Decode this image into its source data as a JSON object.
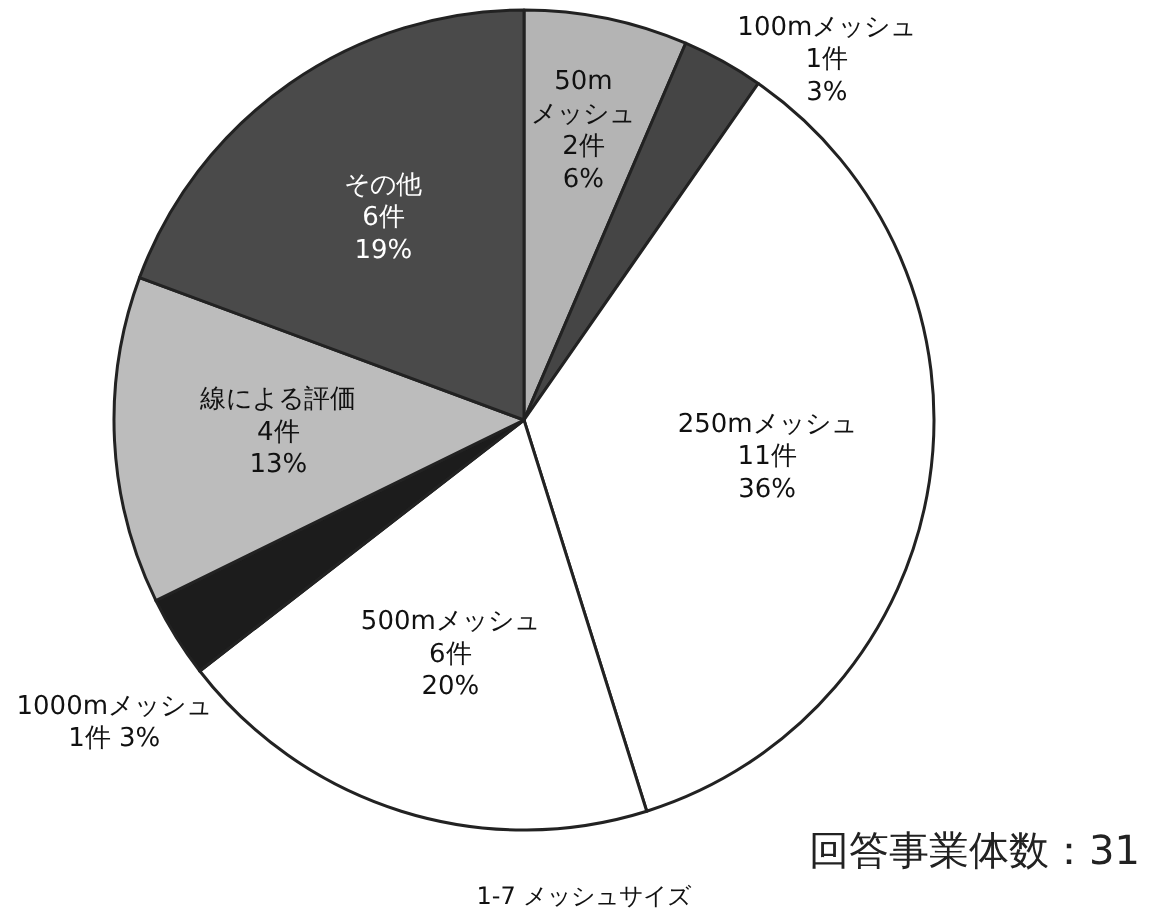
{
  "chart_data": {
    "type": "pie",
    "title": "1-7 メッシュサイズ",
    "categories": [
      "50m\nメッシュ",
      "100mメッシュ",
      "250mメッシュ",
      "500mメッシュ",
      "1000mメッシュ",
      "線による評価",
      "その他"
    ],
    "values": [
      2,
      1,
      11,
      6,
      1,
      4,
      6
    ],
    "value_labels": [
      "2件\n6%",
      "1件\n3%",
      "11件\n36%",
      "6件\n20%",
      "1件 3%",
      "4件\n13%",
      "6件\n19%"
    ],
    "colors": [
      "#b4b4b4",
      "#454545",
      "#ffffff",
      "#ffffff",
      "#1c1c1c",
      "#bcbcbc",
      "#4a4a4a"
    ],
    "annotations": [
      "回答事業体数：31"
    ]
  }
}
